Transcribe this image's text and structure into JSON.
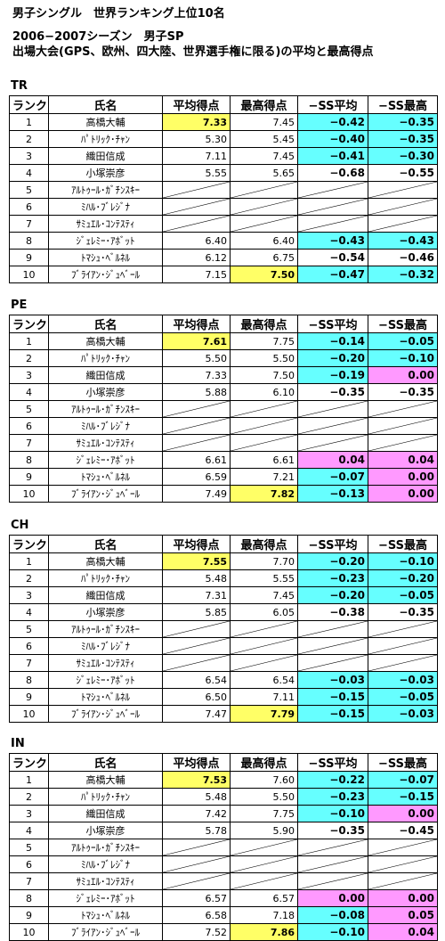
{
  "title": "男子シングル　世界ランキング上位10名",
  "subtitle": "2006−2007シーズン　男子SP",
  "description": "出場大会(GPS、欧州、四大陸、世界選手権に限る)の平均と最高得点",
  "columns": [
    "ランク",
    "氏名",
    "平均得点",
    "最高得点",
    "−SS平均",
    "−SS最高"
  ],
  "names": [
    "高橋大輔",
    "ﾊﾟﾄﾘｯｸ･ﾁｬﾝ",
    "織田信成",
    "小塚崇彦",
    "ｱﾙﾄｩｰﾙ･ｶﾞﾁﾝｽｷｰ",
    "ﾐﾊﾙ･ﾌﾞﾚｼﾞﾅ",
    "ｻﾐｭｴﾙ･ｺﾝﾃｽﾃｨ",
    "ｼﾞｪﾚﾐｰ･ｱﾎﾞｯﾄ",
    "ﾄﾏｼｭ･ﾍﾞﾙﾈﾙ",
    "ﾌﾞﾗｲｱﾝ･ｼﾞｭﾍﾞｰﾙ"
  ],
  "sections": [
    {
      "label": "TR",
      "rows": [
        {
          "rank": "1",
          "avg": "7.33",
          "max": "7.45",
          "ss_avg": "−0.42",
          "ss_max": "−0.35"
        },
        {
          "rank": "2",
          "avg": "5.30",
          "max": "5.45",
          "ss_avg": "−0.40",
          "ss_max": "−0.35"
        },
        {
          "rank": "3",
          "avg": "7.11",
          "max": "7.45",
          "ss_avg": "−0.41",
          "ss_max": "−0.30"
        },
        {
          "rank": "4",
          "avg": "5.55",
          "max": "5.65",
          "ss_avg": "−0.68",
          "ss_max": "−0.55"
        },
        {
          "rank": "5"
        },
        {
          "rank": "6"
        },
        {
          "rank": "7"
        },
        {
          "rank": "8",
          "avg": "6.40",
          "max": "6.40",
          "ss_avg": "−0.43",
          "ss_max": "−0.43"
        },
        {
          "rank": "9",
          "avg": "6.12",
          "max": "6.75",
          "ss_avg": "−0.54",
          "ss_max": "−0.46"
        },
        {
          "rank": "10",
          "avg": "7.15",
          "max": "7.50",
          "ss_avg": "−0.47",
          "ss_max": "−0.32"
        }
      ]
    },
    {
      "label": "PE",
      "rows": [
        {
          "rank": "1",
          "avg": "7.61",
          "max": "7.75",
          "ss_avg": "−0.14",
          "ss_max": "−0.05"
        },
        {
          "rank": "2",
          "avg": "5.50",
          "max": "5.50",
          "ss_avg": "−0.20",
          "ss_max": "−0.10"
        },
        {
          "rank": "3",
          "avg": "7.33",
          "max": "7.50",
          "ss_avg": "−0.19",
          "ss_max": "0.00"
        },
        {
          "rank": "4",
          "avg": "5.88",
          "max": "6.10",
          "ss_avg": "−0.35",
          "ss_max": "−0.35"
        },
        {
          "rank": "5"
        },
        {
          "rank": "6"
        },
        {
          "rank": "7"
        },
        {
          "rank": "8",
          "avg": "6.61",
          "max": "6.61",
          "ss_avg": "0.04",
          "ss_max": "0.04"
        },
        {
          "rank": "9",
          "avg": "6.59",
          "max": "7.21",
          "ss_avg": "−0.07",
          "ss_max": "0.00"
        },
        {
          "rank": "10",
          "avg": "7.49",
          "max": "7.82",
          "ss_avg": "−0.13",
          "ss_max": "0.00"
        }
      ]
    },
    {
      "label": "CH",
      "rows": [
        {
          "rank": "1",
          "avg": "7.55",
          "max": "7.70",
          "ss_avg": "−0.20",
          "ss_max": "−0.10"
        },
        {
          "rank": "2",
          "avg": "5.48",
          "max": "5.55",
          "ss_avg": "−0.23",
          "ss_max": "−0.20"
        },
        {
          "rank": "3",
          "avg": "7.31",
          "max": "7.45",
          "ss_avg": "−0.20",
          "ss_max": "−0.05"
        },
        {
          "rank": "4",
          "avg": "5.85",
          "max": "6.05",
          "ss_avg": "−0.38",
          "ss_max": "−0.35"
        },
        {
          "rank": "5"
        },
        {
          "rank": "6"
        },
        {
          "rank": "7"
        },
        {
          "rank": "8",
          "avg": "6.54",
          "max": "6.54",
          "ss_avg": "−0.03",
          "ss_max": "−0.03"
        },
        {
          "rank": "9",
          "avg": "6.50",
          "max": "7.11",
          "ss_avg": "−0.15",
          "ss_max": "−0.05"
        },
        {
          "rank": "10",
          "avg": "7.47",
          "max": "7.79",
          "ss_avg": "−0.15",
          "ss_max": "−0.03"
        }
      ]
    },
    {
      "label": "IN",
      "rows": [
        {
          "rank": "1",
          "avg": "7.53",
          "max": "7.60",
          "ss_avg": "−0.22",
          "ss_max": "−0.07"
        },
        {
          "rank": "2",
          "avg": "5.48",
          "max": "5.50",
          "ss_avg": "−0.23",
          "ss_max": "−0.15"
        },
        {
          "rank": "3",
          "avg": "7.42",
          "max": "7.75",
          "ss_avg": "−0.10",
          "ss_max": "0.00"
        },
        {
          "rank": "4",
          "avg": "5.78",
          "max": "5.90",
          "ss_avg": "−0.35",
          "ss_max": "−0.45"
        },
        {
          "rank": "5"
        },
        {
          "rank": "6"
        },
        {
          "rank": "7"
        },
        {
          "rank": "8",
          "avg": "6.57",
          "max": "6.57",
          "ss_avg": "0.00",
          "ss_max": "0.00"
        },
        {
          "rank": "9",
          "avg": "6.58",
          "max": "7.18",
          "ss_avg": "−0.08",
          "ss_max": "0.05"
        },
        {
          "rank": "10",
          "avg": "7.52",
          "max": "7.86",
          "ss_avg": "−0.10",
          "ss_max": "0.04"
        }
      ]
    }
  ],
  "colors": {
    "highlight_best": "#ffff66",
    "highlight_negative": "#66ffff",
    "highlight_nonnegative": "#ff99ff"
  }
}
